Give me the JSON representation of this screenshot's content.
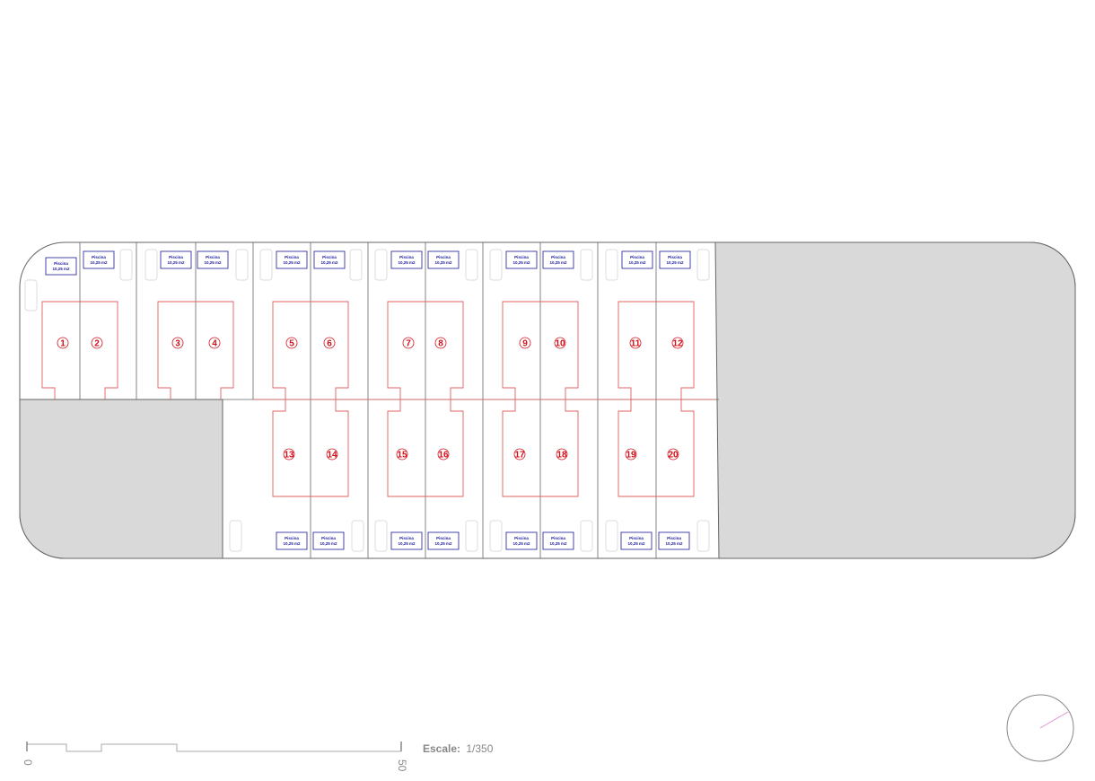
{
  "plan": {
    "lots": [
      {
        "number": "1",
        "pool_label": "Piscina",
        "pool_area": "10,25 m2"
      },
      {
        "number": "2",
        "pool_label": "Piscina",
        "pool_area": "10,25 m2"
      },
      {
        "number": "3",
        "pool_label": "Piscina",
        "pool_area": "10,25 m2"
      },
      {
        "number": "4",
        "pool_label": "Piscina",
        "pool_area": "10,25 m2"
      },
      {
        "number": "5",
        "pool_label": "Piscina",
        "pool_area": "10,25 m2"
      },
      {
        "number": "6",
        "pool_label": "Piscina",
        "pool_area": "10,25 m2"
      },
      {
        "number": "7",
        "pool_label": "Piscina",
        "pool_area": "10,25 m2"
      },
      {
        "number": "8",
        "pool_label": "Piscina",
        "pool_area": "10,25 m2"
      },
      {
        "number": "9",
        "pool_label": "Piscina",
        "pool_area": "10,25 m2"
      },
      {
        "number": "10",
        "pool_label": "Piscina",
        "pool_area": "10,25 m2"
      },
      {
        "number": "11",
        "pool_label": "Piscina",
        "pool_area": "10,25 m2"
      },
      {
        "number": "12",
        "pool_label": "Piscina",
        "pool_area": "10,25 m2"
      },
      {
        "number": "13",
        "pool_label": "Piscina",
        "pool_area": "10,25 m2"
      },
      {
        "number": "14",
        "pool_label": "Piscina",
        "pool_area": "10,25 m2"
      },
      {
        "number": "15",
        "pool_label": "Piscina",
        "pool_area": "10,25 m2"
      },
      {
        "number": "16",
        "pool_label": "Piscina",
        "pool_area": "10,25 m2"
      },
      {
        "number": "17",
        "pool_label": "Piscina",
        "pool_area": "10,25 m2"
      },
      {
        "number": "18",
        "pool_label": "Piscina",
        "pool_area": "10,25 m2"
      },
      {
        "number": "19",
        "pool_label": "Piscina",
        "pool_area": "10,25 m2"
      },
      {
        "number": "20",
        "pool_label": "Piscina",
        "pool_area": "10,25 m2"
      }
    ],
    "colors": {
      "boundary": "#555555",
      "house_outline": "#e06060",
      "lot_number": "#d0101a",
      "pool": "#1a1a9a",
      "common_area": "#d9d9d9",
      "north_arrow": "#e090d0"
    }
  },
  "scale_bar": {
    "start_label": "0",
    "end_label": "50",
    "label_prefix": "Escale:",
    "label_value": "1/350"
  },
  "north_arrow": {
    "icon": "north-arrow-icon"
  }
}
